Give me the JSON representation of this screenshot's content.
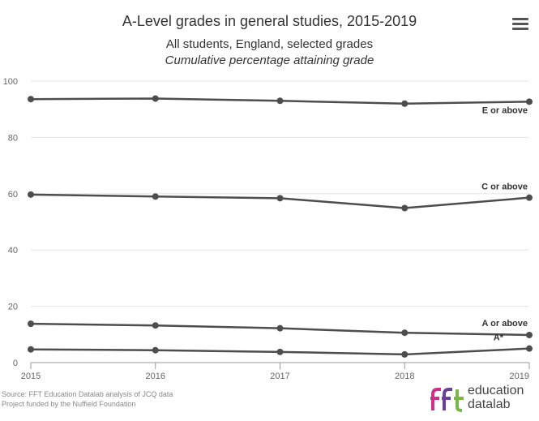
{
  "title": "A-Level grades in general studies, 2015-2019",
  "subtitle": "All students, England, selected grades",
  "subtitle2": "Cumulative percentage attaining grade",
  "source_line1": "Source: FFT Education Datalab analysis of JCQ data",
  "source_line2": "Project funded by the Nuffield Foundation",
  "logo": {
    "mark": "fft",
    "line1": "education",
    "line2": "datalab"
  },
  "colors": {
    "line": "#4d4d4d",
    "grid": "#e6e6e6",
    "logo_pink": "#d0308a",
    "logo_purple": "#6c3f99",
    "logo_green": "#7ab648"
  },
  "chart_data": {
    "type": "line",
    "x": [
      2015,
      2016,
      2017,
      2018,
      2019
    ],
    "x_tick_labels": [
      "2015",
      "2016",
      "2017",
      "2018",
      "2019"
    ],
    "ylim": [
      0,
      100
    ],
    "y_ticks": [
      0,
      20,
      40,
      60,
      80,
      100
    ],
    "y_tick_labels": [
      "0",
      "20",
      "40",
      "60",
      "80",
      "100"
    ],
    "grid": true,
    "legend": "none (inline labels at line ends)",
    "series": [
      {
        "name": "E or above",
        "values": [
          93.6,
          93.8,
          93.0,
          92.0,
          92.7
        ]
      },
      {
        "name": "C or above",
        "values": [
          59.7,
          59.0,
          58.4,
          54.9,
          58.6
        ]
      },
      {
        "name": "A or above",
        "values": [
          13.8,
          13.2,
          12.2,
          10.6,
          9.8
        ]
      },
      {
        "name": "A*",
        "values": [
          4.7,
          4.4,
          3.8,
          2.9,
          5.0
        ]
      }
    ]
  }
}
